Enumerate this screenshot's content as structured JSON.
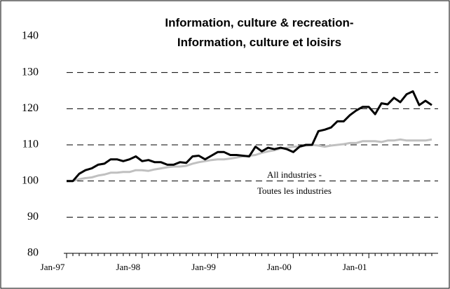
{
  "chart_data": {
    "type": "line",
    "title": [
      "Information, culture & recreation-",
      "Information, culture et loisirs"
    ],
    "annotation": [
      "All industries -",
      "Toutes les industries"
    ],
    "categories": [
      "Jan-97",
      null,
      null,
      null,
      null,
      null,
      null,
      null,
      null,
      null,
      null,
      null,
      "Jan-98",
      null,
      null,
      null,
      null,
      null,
      null,
      null,
      null,
      null,
      null,
      null,
      "Jan-99",
      null,
      null,
      null,
      null,
      null,
      null,
      null,
      null,
      null,
      null,
      null,
      "Jan-00",
      null,
      null,
      null,
      null,
      null,
      null,
      null,
      null,
      null,
      null,
      null,
      "Jan-01",
      null,
      null,
      null,
      null,
      null,
      null,
      null,
      null,
      null,
      null
    ],
    "series": [
      {
        "color": "#000000",
        "values": [
          100,
          100,
          102,
          103,
          103.5,
          104.5,
          104.8,
          106,
          106,
          105.5,
          106,
          106.8,
          105.5,
          105.8,
          105.2,
          105.2,
          104.5,
          104.5,
          105.2,
          105,
          106.8,
          107,
          106,
          107,
          108,
          108,
          107.2,
          107.2,
          107,
          106.8,
          109.5,
          108.2,
          109.2,
          108.8,
          109.2,
          108.8,
          108,
          109.5,
          110,
          110,
          113.8,
          114.2,
          114.8,
          116.5,
          116.5,
          118.2,
          119.5,
          120.5,
          120.5,
          118.5,
          121.5,
          121.2,
          123,
          121.8,
          124,
          124.8,
          121,
          122.2,
          121
        ]
      },
      {
        "color": "#c0c0c0",
        "values": [
          100,
          100,
          100.5,
          100.8,
          101,
          101.5,
          101.8,
          102.3,
          102.3,
          102.5,
          102.5,
          103,
          103,
          102.8,
          103.2,
          103.5,
          103.8,
          104,
          104,
          104.2,
          104.8,
          105.2,
          105.5,
          105.8,
          106,
          106,
          106.2,
          106.5,
          106.8,
          107,
          107.2,
          107.8,
          108.2,
          108.5,
          109,
          109.2,
          109.5,
          109.5,
          109.8,
          110,
          109.8,
          109.5,
          109.8,
          110,
          110.2,
          110.5,
          110.5,
          111,
          111,
          111,
          110.8,
          111.2,
          111.2,
          111.5,
          111.2,
          111.2,
          111.2,
          111.2,
          111.5
        ]
      }
    ],
    "ylim": [
      80,
      140
    ],
    "yticks": [
      80,
      90,
      100,
      110,
      120,
      130,
      140
    ],
    "grid": true
  }
}
